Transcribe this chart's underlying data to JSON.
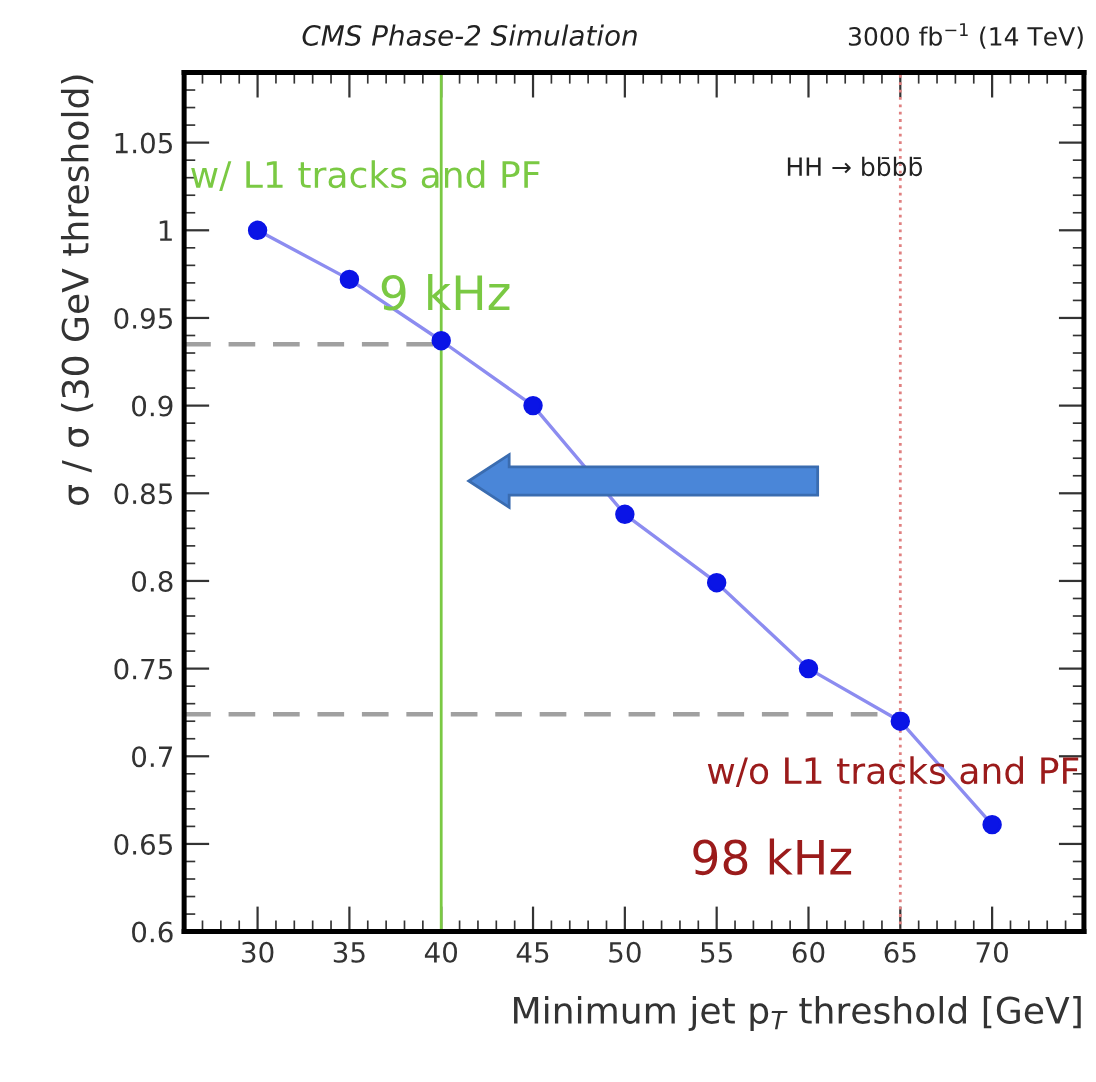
{
  "chart_data": {
    "type": "line",
    "title": "CMS Phase-2 Simulation",
    "subtitle": "3000 fb$^{−1}$ (14 TeV)",
    "xlabel": "Minimum jet p$_{T}$ threshold [GeV]",
    "ylabel": "σ / σ (30 GeV threshold)",
    "x": [
      30,
      35,
      40,
      45,
      50,
      55,
      60,
      65,
      70
    ],
    "series": [
      {
        "color": "#8c8cf0",
        "values": [
          1.0,
          0.972,
          0.937,
          0.9,
          0.838,
          0.799,
          0.75,
          0.72,
          0.661
        ]
      }
    ],
    "marker": "circle",
    "line_style": "solid",
    "xlim": [
      26,
      75
    ],
    "ylim": [
      0.6,
      1.09
    ],
    "xticks": [
      30,
      35,
      40,
      45,
      50,
      55,
      60,
      65,
      70
    ],
    "yticks": [
      0.6,
      0.65,
      0.7,
      0.75,
      0.8,
      0.85,
      0.9,
      0.95,
      1,
      1.05
    ],
    "ref_lines": [
      {
        "axis": "x",
        "value": 40,
        "color": "#7ac943",
        "line_style": "solid"
      },
      {
        "axis": "x",
        "value": 65,
        "color": "#e08080",
        "line_style": "dotted"
      },
      {
        "axis": "y",
        "value": 0.935,
        "color": "#a0a0a0",
        "line_style": "dashed"
      },
      {
        "axis": "y",
        "value": 0.724,
        "color": "#a0a0a0",
        "line_style": "dashed"
      }
    ],
    "annotations": [
      "w/ L1 tracks and PF",
      "9 kHz",
      "w/o L1 tracks and PF",
      "98 kHz",
      "HH → bb̄bb̄"
    ],
    "grid": false
  }
}
